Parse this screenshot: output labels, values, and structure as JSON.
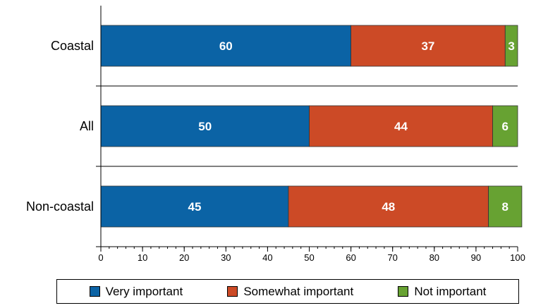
{
  "chart_data": {
    "type": "bar",
    "orientation": "horizontal",
    "stacked": true,
    "categories": [
      "Coastal",
      "All",
      "Non-coastal"
    ],
    "series": [
      {
        "name": "Very important",
        "values": [
          60,
          50,
          45
        ],
        "color": "#0b63a5"
      },
      {
        "name": "Somewhat important",
        "values": [
          37,
          44,
          48
        ],
        "color": "#cc4a26"
      },
      {
        "name": "Not important",
        "values": [
          3,
          6,
          8
        ],
        "color": "#67a232"
      }
    ],
    "xlim": [
      0,
      100
    ],
    "xticks": [
      0,
      10,
      20,
      30,
      40,
      50,
      60,
      70,
      80,
      90,
      100
    ],
    "grid": false,
    "legend_position": "bottom"
  }
}
